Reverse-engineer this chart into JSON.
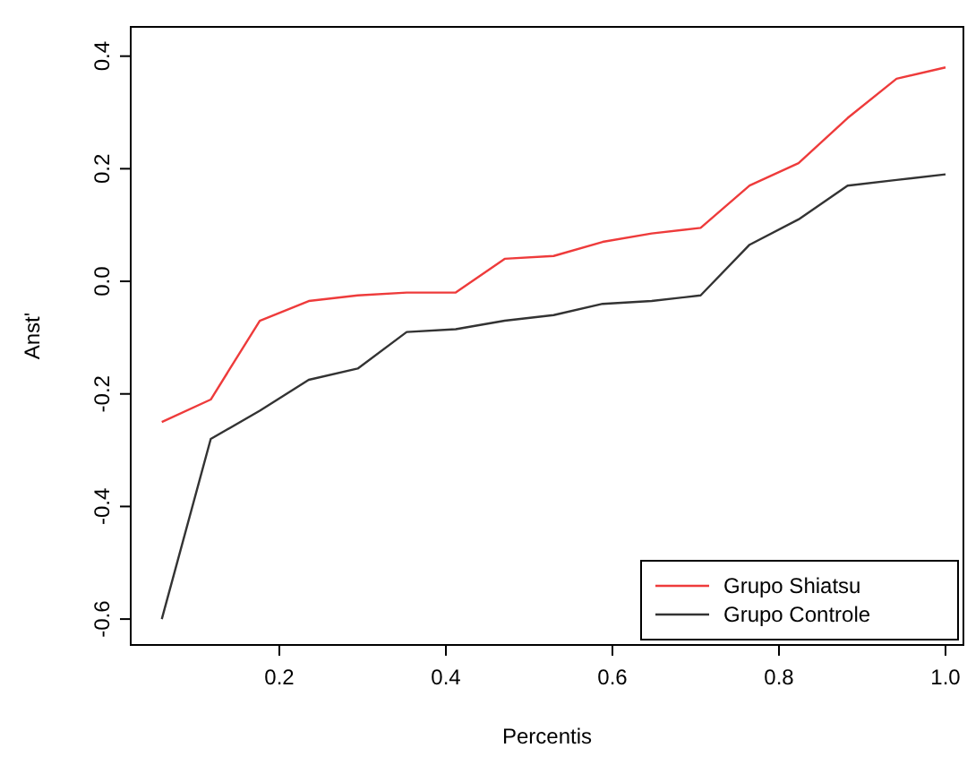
{
  "chart_data": {
    "type": "line",
    "xlabel": "Percentis",
    "ylabel": "Anst'",
    "xlim": [
      0.0215,
      1.0215
    ],
    "ylim": [
      -0.646,
      0.452
    ],
    "xticks": [
      0.2,
      0.4,
      0.6,
      0.8,
      {
        "value": 1,
        "label": "1.0"
      }
    ],
    "yticks": [
      -0.6,
      -0.4,
      -0.2,
      {
        "value": 0,
        "label": "0.0"
      },
      0.2,
      0.4
    ],
    "x": [
      0.0588,
      0.1176,
      0.1765,
      0.2353,
      0.2941,
      0.3529,
      0.4118,
      0.4706,
      0.5294,
      0.5882,
      0.6471,
      0.7059,
      0.7647,
      0.8235,
      0.8824,
      0.9412,
      1.0
    ],
    "series": [
      {
        "name": "Grupo Shiatsu",
        "color": "#ee3b3b",
        "values": [
          -0.25,
          -0.21,
          -0.07,
          -0.035,
          -0.025,
          -0.02,
          -0.02,
          0.04,
          0.045,
          0.07,
          0.085,
          0.095,
          0.17,
          0.21,
          0.29,
          0.36,
          0.38
        ]
      },
      {
        "name": "Grupo Controle",
        "color": "#333333",
        "values": [
          -0.6,
          -0.28,
          -0.23,
          -0.175,
          -0.155,
          -0.09,
          -0.085,
          -0.07,
          -0.06,
          -0.04,
          -0.035,
          -0.025,
          0.065,
          0.11,
          0.17,
          0.18,
          0.19
        ]
      }
    ],
    "legend": "bottom right",
    "grid": false,
    "marker": "none",
    "line_style": "solid"
  }
}
